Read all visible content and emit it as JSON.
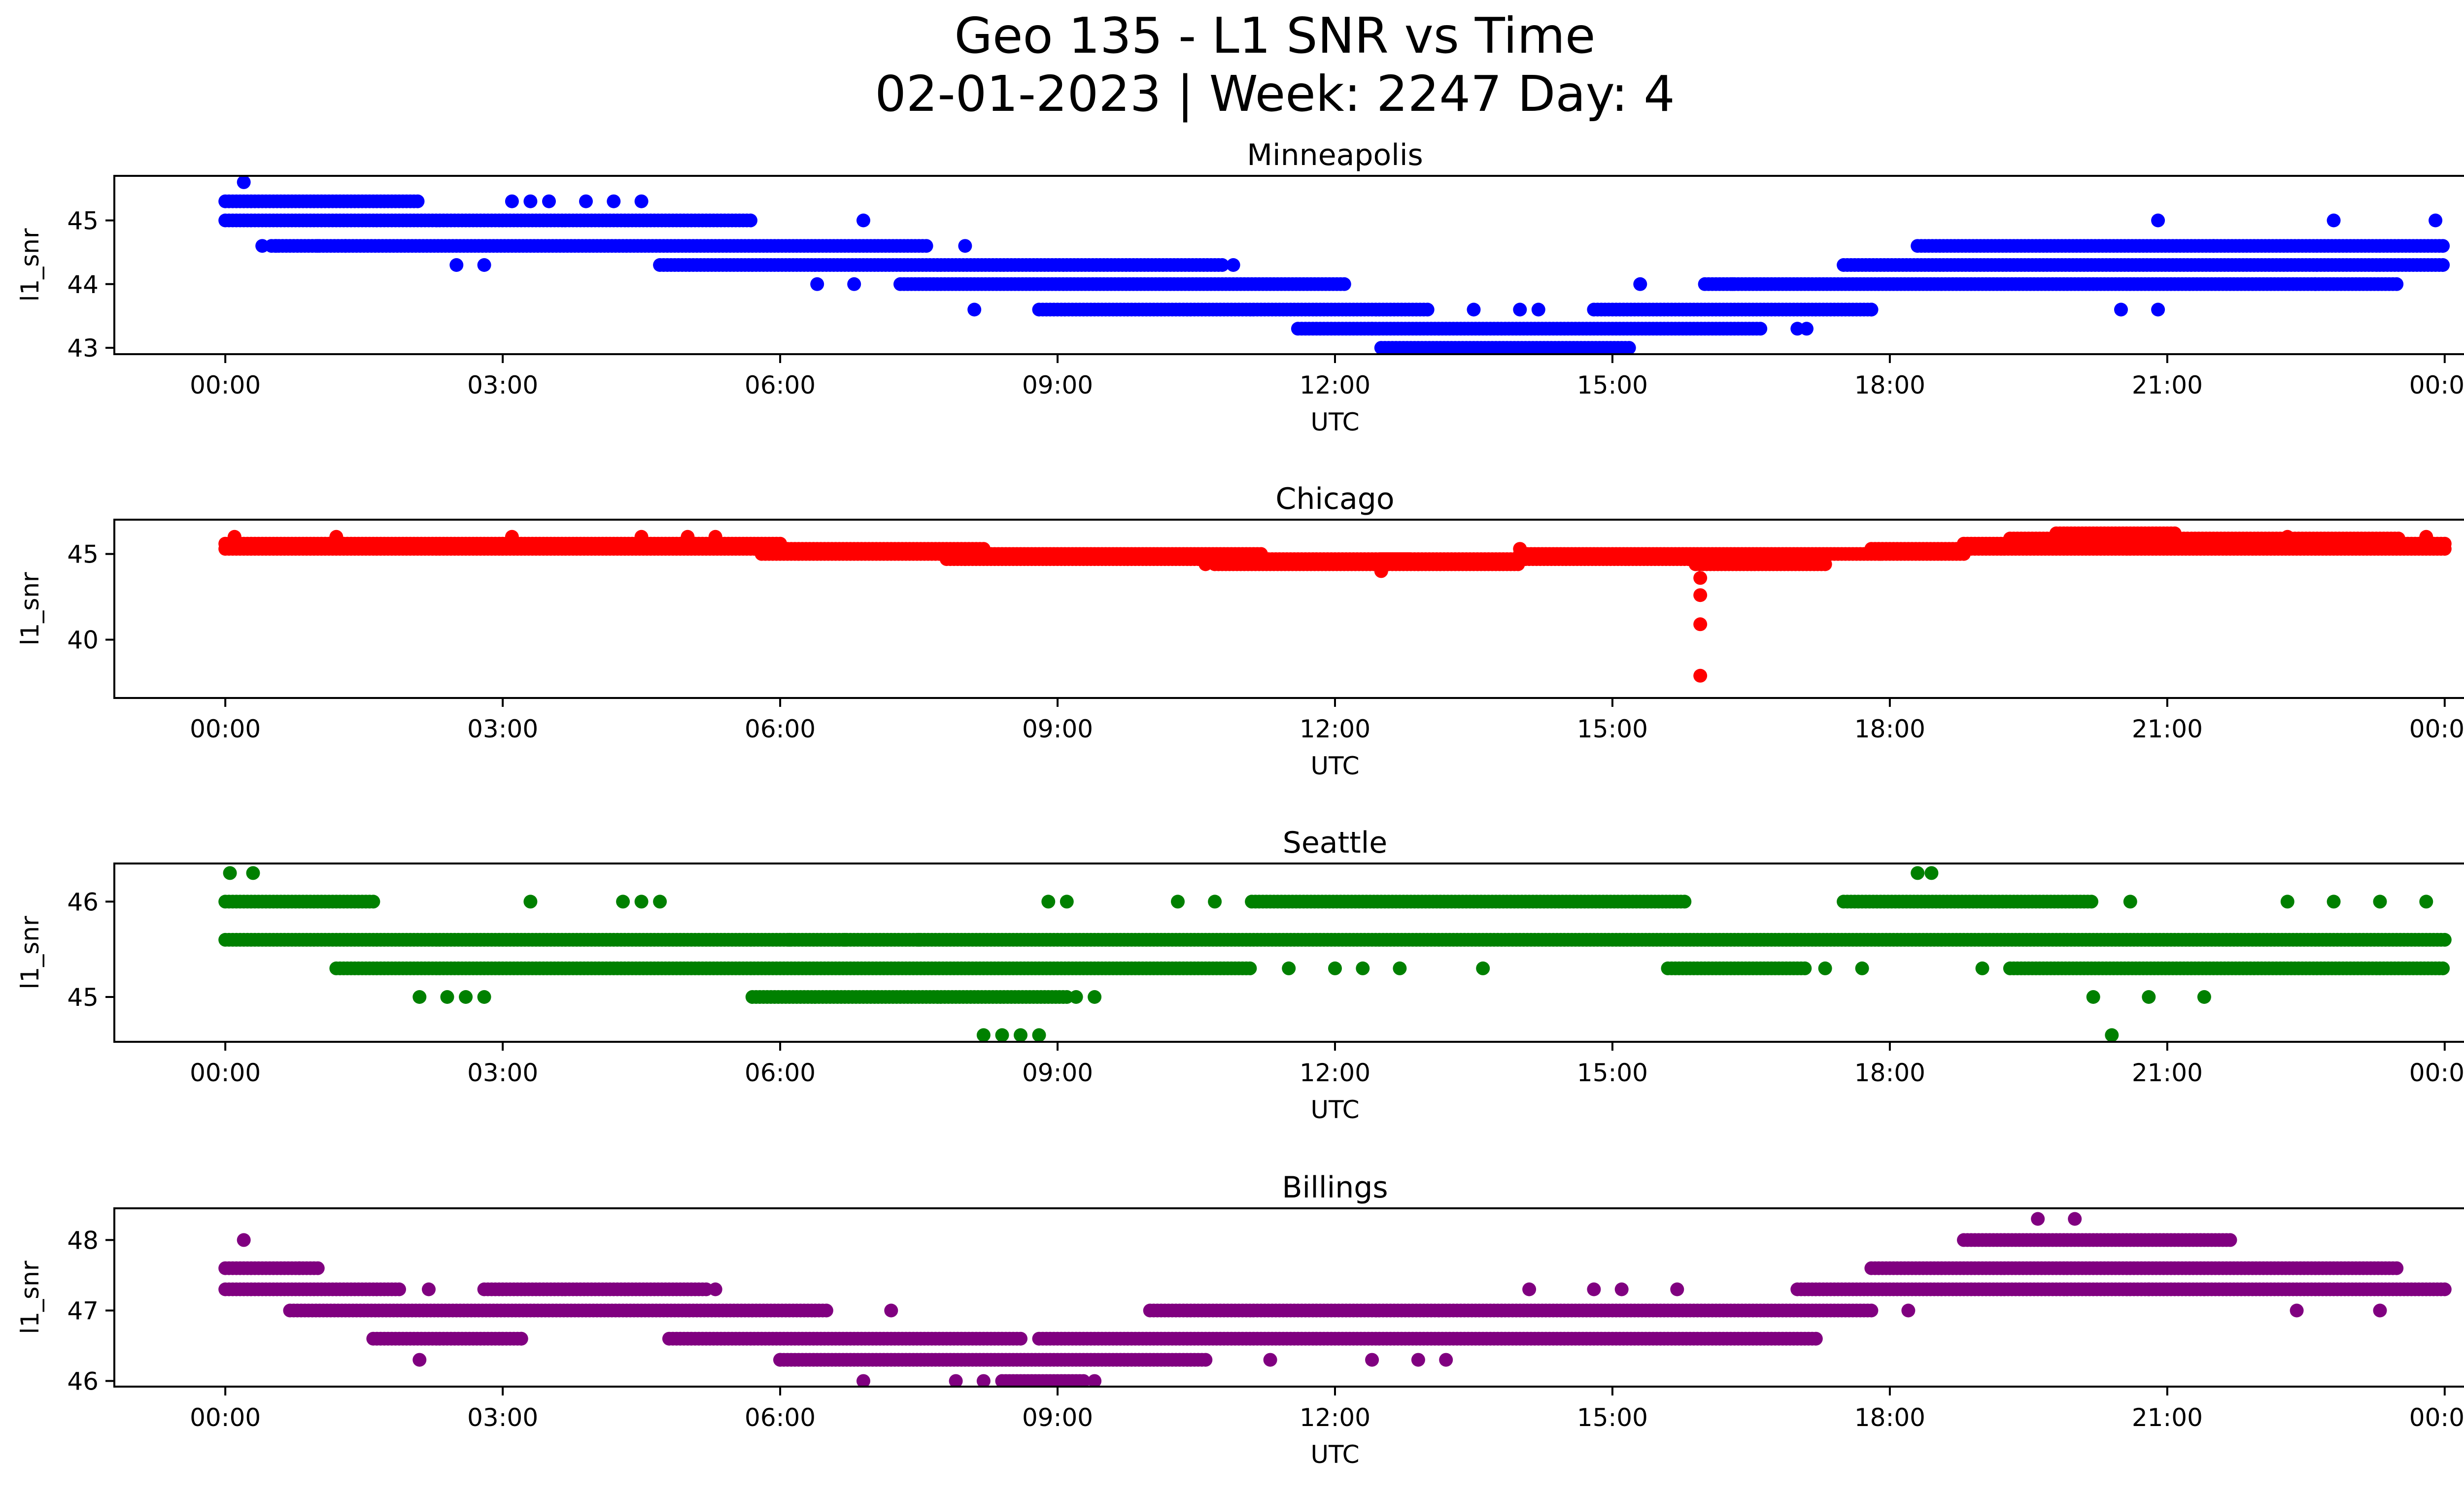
{
  "title": {
    "line1": "Geo 135 - L1 SNR vs Time",
    "line2": "02-01-2023 | Week: 2247 Day: 4"
  },
  "x_tick_labels": [
    "00:00",
    "03:00",
    "06:00",
    "09:00",
    "12:00",
    "15:00",
    "18:00",
    "21:00",
    "00:00"
  ],
  "chart_data": [
    {
      "type": "scatter",
      "title": "Minneapolis",
      "xlabel": "UTC",
      "ylabel": "l1_snr",
      "color": "#0000ff",
      "xlim": [
        -1.2,
        25.2
      ],
      "ylim": [
        42.9,
        45.7
      ],
      "x_ticks": [
        0,
        3,
        6,
        9,
        12,
        15,
        18,
        21,
        24
      ],
      "y_ticks": [
        43,
        44,
        45
      ],
      "bands": [
        {
          "y": 45.3,
          "from": 0.0,
          "to": 2.1
        },
        {
          "y": 45.0,
          "from": 0.0,
          "to": 5.7
        },
        {
          "y": 44.6,
          "from": 0.5,
          "to": 7.6
        },
        {
          "y": 44.3,
          "from": 4.7,
          "to": 10.8
        },
        {
          "y": 44.0,
          "from": 7.3,
          "to": 12.1
        },
        {
          "y": 43.6,
          "from": 8.8,
          "to": 13.0
        },
        {
          "y": 43.3,
          "from": 11.6,
          "to": 16.6
        },
        {
          "y": 43.0,
          "from": 12.5,
          "to": 15.2
        },
        {
          "y": 43.6,
          "from": 14.8,
          "to": 17.8
        },
        {
          "y": 44.0,
          "from": 16.0,
          "to": 23.5
        },
        {
          "y": 44.3,
          "from": 17.5,
          "to": 24.0
        },
        {
          "y": 44.6,
          "from": 18.3,
          "to": 24.0
        }
      ],
      "points": [
        [
          0.2,
          45.6
        ],
        [
          0.4,
          44.6
        ],
        [
          0.55,
          44.6
        ],
        [
          1.0,
          44.6
        ],
        [
          1.3,
          44.6
        ],
        [
          2.5,
          44.3
        ],
        [
          2.8,
          44.3
        ],
        [
          3.1,
          45.3
        ],
        [
          3.3,
          45.3
        ],
        [
          3.5,
          45.3
        ],
        [
          3.9,
          45.3
        ],
        [
          4.2,
          45.3
        ],
        [
          4.5,
          45.3
        ],
        [
          6.4,
          44.0
        ],
        [
          6.8,
          44.0
        ],
        [
          6.9,
          45.0
        ],
        [
          8.0,
          44.6
        ],
        [
          8.1,
          43.6
        ],
        [
          10.9,
          44.3
        ],
        [
          12.4,
          43.3
        ],
        [
          13.5,
          43.6
        ],
        [
          14.0,
          43.6
        ],
        [
          14.2,
          43.6
        ],
        [
          15.3,
          44.0
        ],
        [
          16.3,
          44.0
        ],
        [
          17.0,
          43.3
        ],
        [
          17.1,
          43.3
        ],
        [
          17.8,
          43.6
        ],
        [
          20.5,
          43.6
        ],
        [
          20.9,
          43.6
        ],
        [
          20.9,
          45.0
        ],
        [
          21.5,
          44.6
        ],
        [
          22.6,
          44.0
        ],
        [
          22.8,
          45.0
        ],
        [
          23.9,
          45.0
        ]
      ]
    },
    {
      "type": "scatter",
      "title": "Chicago",
      "xlabel": "UTC",
      "ylabel": "l1_snr",
      "color": "#ff0000",
      "xlim": [
        -1.2,
        25.2
      ],
      "ylim": [
        36.6,
        47.0
      ],
      "x_ticks": [
        0,
        3,
        6,
        9,
        12,
        15,
        18,
        21,
        24
      ],
      "y_ticks": [
        40,
        45
      ],
      "bands": [
        {
          "y": 45.6,
          "from": 0.0,
          "to": 6.0
        },
        {
          "y": 45.3,
          "from": 0.0,
          "to": 8.2
        },
        {
          "y": 45.0,
          "from": 5.8,
          "to": 11.2
        },
        {
          "y": 44.7,
          "from": 7.8,
          "to": 12.8
        },
        {
          "y": 44.4,
          "from": 10.7,
          "to": 14.0
        },
        {
          "y": 44.7,
          "from": 12.5,
          "to": 16.8
        },
        {
          "y": 45.0,
          "from": 14.0,
          "to": 18.8
        },
        {
          "y": 44.4,
          "from": 15.9,
          "to": 17.3
        },
        {
          "y": 45.3,
          "from": 17.8,
          "to": 24.0
        },
        {
          "y": 45.6,
          "from": 18.8,
          "to": 24.0
        },
        {
          "y": 45.9,
          "from": 19.3,
          "to": 23.5
        },
        {
          "y": 46.2,
          "from": 19.8,
          "to": 21.1
        }
      ],
      "points": [
        [
          0.1,
          46.0
        ],
        [
          1.2,
          46.0
        ],
        [
          3.1,
          46.0
        ],
        [
          4.5,
          46.0
        ],
        [
          5.0,
          46.0
        ],
        [
          5.3,
          46.0
        ],
        [
          6.2,
          45.0
        ],
        [
          8.0,
          44.7
        ],
        [
          10.6,
          44.4
        ],
        [
          12.5,
          44.0
        ],
        [
          12.9,
          44.4
        ],
        [
          14.0,
          45.3
        ],
        [
          15.9,
          44.4
        ],
        [
          15.95,
          43.6
        ],
        [
          15.95,
          42.6
        ],
        [
          15.95,
          40.9
        ],
        [
          15.95,
          37.9
        ],
        [
          17.9,
          45.0
        ],
        [
          22.3,
          46.0
        ],
        [
          23.8,
          46.0
        ]
      ]
    },
    {
      "type": "scatter",
      "title": "Seattle",
      "xlabel": "UTC",
      "ylabel": "l1_snr",
      "color": "#008000",
      "xlim": [
        -1.2,
        25.2
      ],
      "ylim": [
        44.53,
        46.4
      ],
      "x_ticks": [
        0,
        3,
        6,
        9,
        12,
        15,
        18,
        21,
        24
      ],
      "y_ticks": [
        45,
        46
      ],
      "bands": [
        {
          "y": 45.6,
          "from": 0.0,
          "to": 24.0
        },
        {
          "y": 46.0,
          "from": 0.0,
          "to": 1.6
        },
        {
          "y": 45.3,
          "from": 1.2,
          "to": 11.1
        },
        {
          "y": 45.3,
          "from": 19.3,
          "to": 24.0
        },
        {
          "y": 45.0,
          "from": 5.7,
          "to": 9.1
        },
        {
          "y": 46.0,
          "from": 11.1,
          "to": 15.8
        },
        {
          "y": 46.0,
          "from": 17.5,
          "to": 20.2
        },
        {
          "y": 45.3,
          "from": 15.6,
          "to": 17.1
        }
      ],
      "points": [
        [
          0.05,
          46.3
        ],
        [
          0.3,
          46.3
        ],
        [
          2.1,
          45.0
        ],
        [
          2.4,
          45.0
        ],
        [
          2.6,
          45.0
        ],
        [
          2.8,
          45.0
        ],
        [
          3.3,
          46.0
        ],
        [
          4.3,
          46.0
        ],
        [
          4.5,
          46.0
        ],
        [
          4.7,
          46.0
        ],
        [
          6.1,
          45.6
        ],
        [
          6.7,
          45.6
        ],
        [
          7.5,
          45.6
        ],
        [
          8.2,
          44.6
        ],
        [
          8.4,
          44.6
        ],
        [
          8.6,
          44.6
        ],
        [
          8.8,
          44.6
        ],
        [
          8.9,
          46.0
        ],
        [
          9.1,
          46.0
        ],
        [
          9.2,
          45.0
        ],
        [
          9.4,
          45.0
        ],
        [
          10.3,
          46.0
        ],
        [
          10.7,
          46.0
        ],
        [
          11.5,
          45.3
        ],
        [
          12.0,
          45.3
        ],
        [
          12.3,
          45.3
        ],
        [
          12.7,
          45.3
        ],
        [
          13.6,
          45.3
        ],
        [
          17.3,
          45.3
        ],
        [
          17.7,
          45.3
        ],
        [
          18.3,
          46.3
        ],
        [
          18.45,
          46.3
        ],
        [
          19.0,
          45.3
        ],
        [
          20.4,
          44.6
        ],
        [
          20.6,
          46.0
        ],
        [
          20.2,
          45.0
        ],
        [
          20.8,
          45.0
        ],
        [
          21.4,
          45.0
        ],
        [
          22.3,
          46.0
        ],
        [
          22.8,
          46.0
        ],
        [
          23.3,
          46.0
        ],
        [
          23.8,
          46.0
        ]
      ]
    },
    {
      "type": "scatter",
      "title": "Billings",
      "xlabel": "UTC",
      "ylabel": "l1_snr",
      "color": "#800080",
      "xlim": [
        -1.2,
        25.2
      ],
      "ylim": [
        45.92,
        48.45
      ],
      "x_ticks": [
        0,
        3,
        6,
        9,
        12,
        15,
        18,
        21,
        24
      ],
      "y_ticks": [
        46,
        47,
        48
      ],
      "bands": [
        {
          "y": 47.6,
          "from": 0.0,
          "to": 1.0
        },
        {
          "y": 47.3,
          "from": 0.0,
          "to": 1.9
        },
        {
          "y": 47.0,
          "from": 0.7,
          "to": 6.5
        },
        {
          "y": 46.6,
          "from": 1.6,
          "to": 3.2
        },
        {
          "y": 47.3,
          "from": 2.8,
          "to": 5.2
        },
        {
          "y": 46.6,
          "from": 4.8,
          "to": 8.6
        },
        {
          "y": 46.3,
          "from": 6.0,
          "to": 10.6
        },
        {
          "y": 46.0,
          "from": 8.4,
          "to": 9.3
        },
        {
          "y": 46.6,
          "from": 8.8,
          "to": 17.2
        },
        {
          "y": 47.0,
          "from": 10.0,
          "to": 17.8
        },
        {
          "y": 47.3,
          "from": 17.0,
          "to": 24.0
        },
        {
          "y": 47.6,
          "from": 17.8,
          "to": 23.5
        },
        {
          "y": 48.0,
          "from": 18.8,
          "to": 21.7
        }
      ],
      "points": [
        [
          0.2,
          48.0
        ],
        [
          0.8,
          47.6
        ],
        [
          2.1,
          46.3
        ],
        [
          2.2,
          47.3
        ],
        [
          3.2,
          46.6
        ],
        [
          5.3,
          47.3
        ],
        [
          6.0,
          46.3
        ],
        [
          6.9,
          46.0
        ],
        [
          7.2,
          47.0
        ],
        [
          7.9,
          46.0
        ],
        [
          8.2,
          46.0
        ],
        [
          9.4,
          46.0
        ],
        [
          11.3,
          46.3
        ],
        [
          12.4,
          46.3
        ],
        [
          12.9,
          46.3
        ],
        [
          13.2,
          46.3
        ],
        [
          14.1,
          47.3
        ],
        [
          14.8,
          47.3
        ],
        [
          15.1,
          47.3
        ],
        [
          15.7,
          47.3
        ],
        [
          18.2,
          47.0
        ],
        [
          19.6,
          48.3
        ],
        [
          20.0,
          48.3
        ],
        [
          20.8,
          47.3
        ],
        [
          21.4,
          47.3
        ],
        [
          22.4,
          47.0
        ],
        [
          23.3,
          47.0
        ]
      ]
    }
  ]
}
